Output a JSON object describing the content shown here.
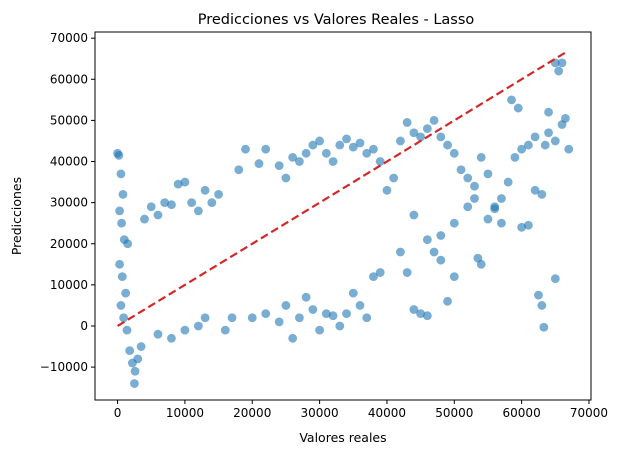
{
  "chart_data": {
    "type": "scatter",
    "title": "Predicciones vs Valores Reales - Lasso",
    "xlabel": "Valores reales",
    "ylabel": "Predicciones",
    "xlim": [
      -3350,
      70300
    ],
    "ylim": [
      -18000,
      71500
    ],
    "xticks": [
      0,
      10000,
      20000,
      30000,
      40000,
      50000,
      60000,
      70000
    ],
    "yticks": [
      -10000,
      0,
      10000,
      20000,
      30000,
      40000,
      50000,
      60000,
      70000
    ],
    "xtick_labels": [
      "0",
      "10000",
      "20000",
      "30000",
      "40000",
      "50000",
      "60000",
      "70000"
    ],
    "ytick_labels": [
      "−10000",
      "0",
      "10000",
      "20000",
      "30000",
      "40000",
      "50000",
      "60000",
      "70000"
    ],
    "grid": false,
    "point_color": "#1f77b4",
    "point_alpha": 0.6,
    "reference_line": {
      "x": [
        0,
        66500
      ],
      "y": [
        0,
        66500
      ],
      "color": "#d62728",
      "style": "dashed"
    },
    "series": [
      {
        "points": [
          [
            0,
            42000
          ],
          [
            200,
            41500
          ],
          [
            500,
            37000
          ],
          [
            800,
            32000
          ],
          [
            300,
            28000
          ],
          [
            600,
            25000
          ],
          [
            1000,
            21000
          ],
          [
            1500,
            20000
          ],
          [
            300,
            15000
          ],
          [
            700,
            12000
          ],
          [
            1200,
            8000
          ],
          [
            500,
            5000
          ],
          [
            900,
            2000
          ],
          [
            1400,
            -1000
          ],
          [
            1800,
            -6000
          ],
          [
            2200,
            -9000
          ],
          [
            2600,
            -11000
          ],
          [
            2500,
            -14000
          ],
          [
            3000,
            -8000
          ],
          [
            3500,
            -5000
          ],
          [
            4000,
            26000
          ],
          [
            5000,
            29000
          ],
          [
            6000,
            27000
          ],
          [
            7000,
            30000
          ],
          [
            8000,
            29500
          ],
          [
            9000,
            34500
          ],
          [
            10000,
            35000
          ],
          [
            11000,
            30000
          ],
          [
            12000,
            28000
          ],
          [
            13000,
            33000
          ],
          [
            14000,
            30000
          ],
          [
            15000,
            32000
          ],
          [
            6000,
            -2000
          ],
          [
            8000,
            -3000
          ],
          [
            10000,
            -1000
          ],
          [
            12000,
            0
          ],
          [
            13000,
            2000
          ],
          [
            16000,
            -1000
          ],
          [
            17000,
            2000
          ],
          [
            18000,
            38000
          ],
          [
            19000,
            43000
          ],
          [
            21000,
            39500
          ],
          [
            22000,
            43000
          ],
          [
            24000,
            39000
          ],
          [
            25000,
            36000
          ],
          [
            26000,
            41000
          ],
          [
            27000,
            40000
          ],
          [
            28000,
            42000
          ],
          [
            29000,
            44000
          ],
          [
            30000,
            45000
          ],
          [
            31000,
            42000
          ],
          [
            32000,
            40000
          ],
          [
            33000,
            44000
          ],
          [
            34000,
            45500
          ],
          [
            35000,
            43500
          ],
          [
            36000,
            44500
          ],
          [
            37000,
            42000
          ],
          [
            38000,
            43000
          ],
          [
            39000,
            40000
          ],
          [
            20000,
            2000
          ],
          [
            22000,
            3000
          ],
          [
            24000,
            1000
          ],
          [
            25000,
            5000
          ],
          [
            26000,
            -3000
          ],
          [
            27000,
            2000
          ],
          [
            28000,
            7000
          ],
          [
            29000,
            4000
          ],
          [
            30000,
            -1000
          ],
          [
            31000,
            3000
          ],
          [
            32000,
            2500
          ],
          [
            33000,
            0
          ],
          [
            34000,
            3000
          ],
          [
            35000,
            8000
          ],
          [
            36000,
            5000
          ],
          [
            37000,
            2000
          ],
          [
            38000,
            12000
          ],
          [
            39000,
            13000
          ],
          [
            40000,
            33000
          ],
          [
            41000,
            36000
          ],
          [
            42000,
            45000
          ],
          [
            43000,
            49500
          ],
          [
            44000,
            47000
          ],
          [
            45000,
            46000
          ],
          [
            46000,
            48000
          ],
          [
            47000,
            50000
          ],
          [
            48000,
            46000
          ],
          [
            49000,
            44000
          ],
          [
            50000,
            42000
          ],
          [
            42000,
            18000
          ],
          [
            43000,
            13000
          ],
          [
            44000,
            4000
          ],
          [
            45000,
            3000
          ],
          [
            46000,
            2500
          ],
          [
            47000,
            18000
          ],
          [
            48000,
            16000
          ],
          [
            49000,
            6000
          ],
          [
            50000,
            12000
          ],
          [
            51000,
            38000
          ],
          [
            52000,
            36000
          ],
          [
            53000,
            34000
          ],
          [
            54000,
            41000
          ],
          [
            55000,
            37000
          ],
          [
            56000,
            29000
          ],
          [
            57000,
            25000
          ],
          [
            58000,
            35000
          ],
          [
            59000,
            41000
          ],
          [
            60000,
            43000
          ],
          [
            61000,
            44000
          ],
          [
            62000,
            33000
          ],
          [
            63000,
            32000
          ],
          [
            64000,
            47000
          ],
          [
            65000,
            45000
          ],
          [
            66000,
            49000
          ],
          [
            67000,
            43000
          ],
          [
            58500,
            55000
          ],
          [
            59500,
            53000
          ],
          [
            62000,
            46000
          ],
          [
            64000,
            52000
          ],
          [
            65000,
            64000
          ],
          [
            65500,
            62000
          ],
          [
            66000,
            64000
          ],
          [
            66500,
            50500
          ],
          [
            63500,
            44000
          ],
          [
            62500,
            7500
          ],
          [
            63000,
            5000
          ],
          [
            63300,
            -300
          ],
          [
            65000,
            11500
          ],
          [
            60000,
            24000
          ],
          [
            61000,
            24500
          ],
          [
            56000,
            28500
          ],
          [
            54000,
            15000
          ],
          [
            53500,
            16500
          ],
          [
            44000,
            27000
          ],
          [
            46000,
            21000
          ],
          [
            48000,
            22000
          ],
          [
            50000,
            25000
          ],
          [
            52000,
            29000
          ],
          [
            55000,
            26000
          ],
          [
            57000,
            31000
          ],
          [
            53000,
            31000
          ]
        ]
      }
    ]
  }
}
